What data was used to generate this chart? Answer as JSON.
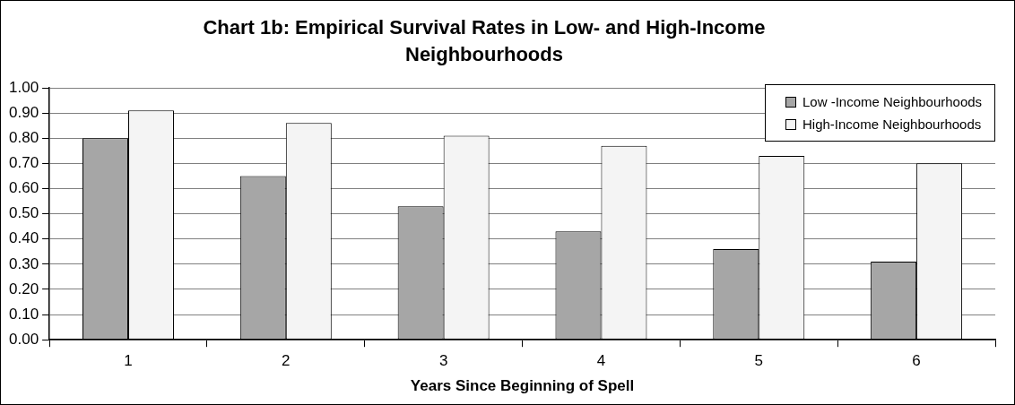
{
  "chart_data": {
    "type": "bar",
    "title": "Chart 1b: Empirical Survival Rates in Low- and High-Income Neighbourhoods",
    "xlabel": "Years Since Beginning of Spell",
    "categories": [
      "1",
      "2",
      "3",
      "4",
      "5",
      "6"
    ],
    "series": [
      {
        "name": "Low -Income Neighbourhoods",
        "color": "#a6a6a6",
        "values": [
          0.8,
          0.65,
          0.53,
          0.43,
          0.36,
          0.31
        ]
      },
      {
        "name": "High-Income Neighbourhoods",
        "color": "#f4f4f4",
        "values": [
          0.91,
          0.86,
          0.81,
          0.77,
          0.73,
          0.7
        ]
      }
    ],
    "ylim": [
      0,
      1
    ],
    "yticks": [
      {
        "value": 0,
        "label": "0.00"
      },
      {
        "value": 0.1,
        "label": "0.10"
      },
      {
        "value": 0.2,
        "label": "0.20"
      },
      {
        "value": 0.3,
        "label": "0.30"
      },
      {
        "value": 0.4,
        "label": "0.40"
      },
      {
        "value": 0.5,
        "label": "0.50"
      },
      {
        "value": 0.6,
        "label": "0.60"
      },
      {
        "value": 0.7,
        "label": "0.70"
      },
      {
        "value": 0.8,
        "label": "0.80"
      },
      {
        "value": 0.9,
        "label": "0.90"
      },
      {
        "value": 1,
        "label": "1.00"
      }
    ],
    "grid": "y",
    "legend": "top right"
  }
}
